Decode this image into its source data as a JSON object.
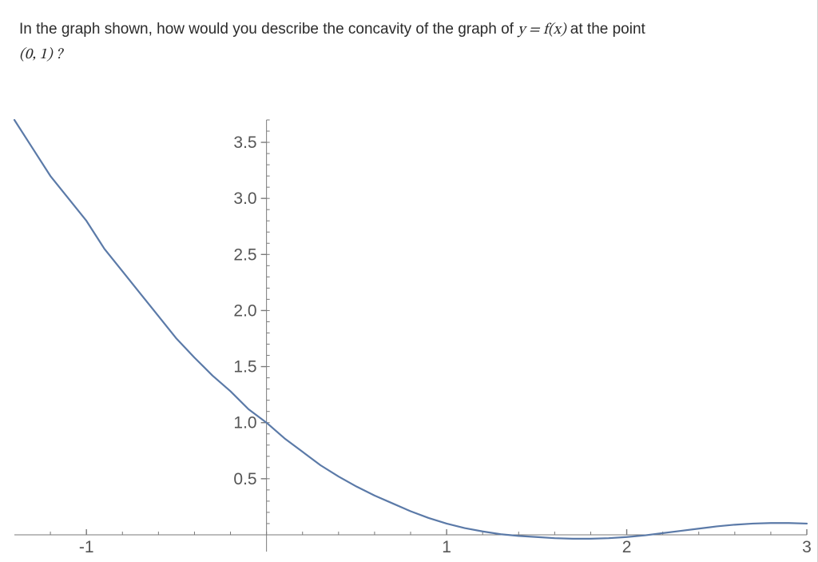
{
  "question": {
    "line1_prefix": "In the graph shown, how would you describe the concavity of the graph of ",
    "equation": "y = f(x)",
    "line1_suffix": " at the point",
    "line2": "(0, 1) ?"
  },
  "chart": {
    "type": "line",
    "x_domain": [
      -1.4,
      3.0
    ],
    "y_domain": [
      -0.15,
      3.7
    ],
    "x_ticks": [
      -1,
      1,
      2,
      3
    ],
    "x_tick_labels": [
      "-1",
      "1",
      "2",
      "3"
    ],
    "y_ticks": [
      0.5,
      1.0,
      1.5,
      2.0,
      2.5,
      3.0,
      3.5
    ],
    "y_tick_labels": [
      "0.5",
      "1.0",
      "1.5",
      "2.0",
      "2.5",
      "3.0",
      "3.5"
    ],
    "minor_x_step": 0.2,
    "minor_y_step": 0.1,
    "curve_points": [
      [
        -1.4,
        3.7
      ],
      [
        -1.3,
        3.45
      ],
      [
        -1.2,
        3.2
      ],
      [
        -1.1,
        3.0
      ],
      [
        -1.0,
        2.8
      ],
      [
        -0.9,
        2.55
      ],
      [
        -0.8,
        2.35
      ],
      [
        -0.7,
        2.15
      ],
      [
        -0.6,
        1.95
      ],
      [
        -0.5,
        1.75
      ],
      [
        -0.4,
        1.58
      ],
      [
        -0.3,
        1.42
      ],
      [
        -0.2,
        1.28
      ],
      [
        -0.1,
        1.12
      ],
      [
        0.0,
        1.0
      ],
      [
        0.1,
        0.86
      ],
      [
        0.2,
        0.74
      ],
      [
        0.3,
        0.62
      ],
      [
        0.4,
        0.52
      ],
      [
        0.5,
        0.43
      ],
      [
        0.6,
        0.35
      ],
      [
        0.7,
        0.28
      ],
      [
        0.8,
        0.21
      ],
      [
        0.9,
        0.15
      ],
      [
        1.0,
        0.1
      ],
      [
        1.1,
        0.06
      ],
      [
        1.2,
        0.03
      ],
      [
        1.3,
        0.005
      ],
      [
        1.4,
        -0.01
      ],
      [
        1.5,
        -0.02
      ],
      [
        1.6,
        -0.03
      ],
      [
        1.7,
        -0.035
      ],
      [
        1.8,
        -0.035
      ],
      [
        1.9,
        -0.03
      ],
      [
        2.0,
        -0.02
      ],
      [
        2.1,
        -0.005
      ],
      [
        2.2,
        0.015
      ],
      [
        2.3,
        0.035
      ],
      [
        2.4,
        0.055
      ],
      [
        2.5,
        0.075
      ],
      [
        2.6,
        0.09
      ],
      [
        2.7,
        0.1
      ],
      [
        2.8,
        0.105
      ],
      [
        2.9,
        0.105
      ],
      [
        3.0,
        0.1
      ]
    ],
    "colors": {
      "background": "#ffffff",
      "axis": "#7a7a7a",
      "tick": "#7a7a7a",
      "tick_label": "#555555",
      "curve": "#5b7aa8"
    },
    "line_width": 2.2,
    "tick_fontsize": 21,
    "tick_font": "Helvetica, Arial, sans-serif",
    "major_tick_len": 7,
    "minor_tick_len": 4,
    "question_fontsize": 19,
    "page_border_right_color": "#d0d0d0"
  }
}
